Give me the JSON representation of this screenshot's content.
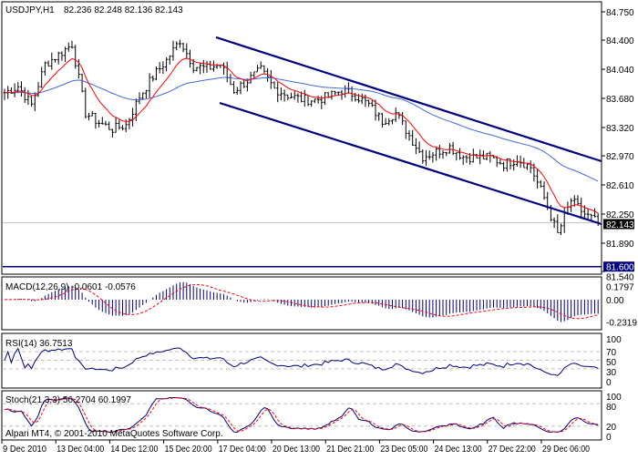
{
  "header": {
    "symbol": "USDJPY,H1",
    "ohlc": "82.236 82.248 82.136 82.143"
  },
  "watermark": "Alpari MT4, © 2001-2010 MetaQuotes Software Corp.",
  "colors": {
    "bars": "#000000",
    "fast_ma": "#ff0000",
    "slow_ma": "#4169e1",
    "channel": "#000080",
    "level_line": "#000080",
    "macd_hist": "#000080",
    "signal": "#ff0000",
    "rsi": "#000080",
    "bid_line": "#c0c0c0"
  },
  "chart_data": [
    {
      "type": "ohlc",
      "title": "USDJPY,H1",
      "ylim": [
        81.54,
        84.75
      ],
      "price_ticks": [
        "84.750",
        "84.400",
        "84.040",
        "83.680",
        "83.320",
        "82.970",
        "82.610",
        "82.250",
        "81.890",
        "81.540"
      ],
      "time_ticks": [
        "9 Dec 2010",
        "13 Dec 04:00",
        "14 Dec 12:00",
        "15 Dec 20:00",
        "17 Dec 04:00",
        "20 Dec 13:00",
        "21 Dec 21:00",
        "23 Dec 05:00",
        "24 Dec 13:00",
        "27 Dec 22:00",
        "29 Dec 06:00"
      ],
      "closes_every_4_bars": [
        83.75,
        83.83,
        83.6,
        84.1,
        84.22,
        84.35,
        83.5,
        83.38,
        83.3,
        83.35,
        83.7,
        83.95,
        84.15,
        84.4,
        84.08,
        84.05,
        84.1,
        83.78,
        83.9,
        84.03,
        83.8,
        83.72,
        83.67,
        83.66,
        83.7,
        83.78,
        83.72,
        83.6,
        83.4,
        83.5,
        83.22,
        82.96,
        83.02,
        83.08,
        82.96,
        82.95,
        82.95,
        82.87,
        82.93,
        82.83,
        82.45,
        82.0,
        82.42,
        82.25,
        82.143
      ],
      "current_price": "82.143",
      "horizontal_level": "81.600",
      "channel": {
        "upper": [
          84.435,
          82.903
        ],
        "lower": [
          83.624,
          82.126
        ],
        "span": [
          "15 Dec 20:00",
          "29 Dec 06:00"
        ]
      }
    },
    {
      "type": "bar",
      "label": "MACD(12,26,9) -0.0601 -0.0576",
      "ticks": [
        "0.1797",
        "0.00",
        "-0.2319"
      ],
      "ylim": [
        -0.2319,
        0.1797
      ]
    },
    {
      "type": "line",
      "label": "RSI(14) 36.7513",
      "ticks": [
        "100",
        "70",
        "50",
        "30",
        "0"
      ],
      "levels": [
        30,
        50,
        70
      ],
      "ylim": [
        0,
        100
      ]
    },
    {
      "type": "line",
      "label": "Stoch(21,3,3) 56.2704 60.1997",
      "ticks": [
        "100",
        "80",
        "20",
        "0"
      ],
      "levels": [
        20,
        80
      ],
      "ylim": [
        0,
        100
      ]
    }
  ]
}
